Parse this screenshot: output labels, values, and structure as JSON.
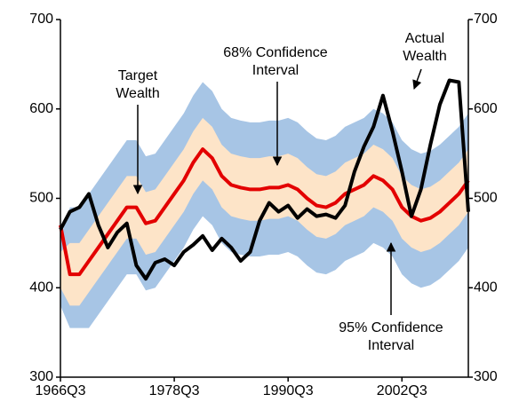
{
  "chart_data": {
    "type": "line",
    "x": [
      1966.5,
      1967.5,
      1968.5,
      1969.5,
      1970.5,
      1971.5,
      1972.5,
      1973.5,
      1974.5,
      1975.5,
      1976.5,
      1977.5,
      1978.5,
      1979.5,
      1980.5,
      1981.5,
      1982.5,
      1983.5,
      1984.5,
      1985.5,
      1986.5,
      1987.5,
      1988.5,
      1989.5,
      1990.5,
      1991.5,
      1992.5,
      1993.5,
      1994.5,
      1995.5,
      1996.5,
      1997.5,
      1998.5,
      1999.5,
      2000.5,
      2001.5,
      2002.5,
      2003.5,
      2004.5,
      2005.5,
      2006.5,
      2007.5,
      2008.5,
      2009.5
    ],
    "xlim": [
      1966.5,
      2009.5
    ],
    "xticks": [
      {
        "value": 1966.5,
        "label": "1966Q3"
      },
      {
        "value": 1978.5,
        "label": "1978Q3"
      },
      {
        "value": 1990.5,
        "label": "1990Q3"
      },
      {
        "value": 2002.5,
        "label": "2002Q3"
      }
    ],
    "ylim": [
      300,
      700
    ],
    "yticks": [
      300,
      400,
      500,
      600,
      700
    ],
    "y2lim": [
      300,
      700
    ],
    "y2ticks": [
      300,
      400,
      500,
      600,
      700
    ],
    "bands": [
      {
        "color": "#a7c5e5",
        "lower": [
          380,
          355,
          355,
          355,
          370,
          385,
          400,
          415,
          415,
          397,
          400,
          415,
          430,
          445,
          465,
          480,
          470,
          450,
          440,
          437,
          435,
          435,
          437,
          437,
          440,
          435,
          425,
          417,
          415,
          420,
          430,
          435,
          440,
          450,
          445,
          435,
          415,
          405,
          400,
          403,
          410,
          420,
          430,
          445
        ],
        "upper": [
          455,
          490,
          490,
          505,
          520,
          535,
          550,
          565,
          565,
          547,
          550,
          565,
          580,
          595,
          615,
          630,
          620,
          600,
          590,
          587,
          585,
          585,
          587,
          587,
          590,
          585,
          575,
          567,
          565,
          570,
          580,
          585,
          590,
          600,
          595,
          585,
          565,
          555,
          550,
          553,
          560,
          570,
          580,
          595
        ]
      },
      {
        "color": "#fde4c8",
        "lower": [
          400,
          380,
          380,
          395,
          410,
          425,
          440,
          455,
          455,
          437,
          440,
          455,
          470,
          485,
          505,
          520,
          510,
          490,
          480,
          477,
          475,
          475,
          477,
          477,
          480,
          475,
          465,
          457,
          455,
          460,
          470,
          475,
          480,
          490,
          485,
          475,
          455,
          445,
          440,
          443,
          450,
          460,
          470,
          485
        ],
        "upper": [
          440,
          450,
          450,
          465,
          480,
          495,
          510,
          525,
          525,
          507,
          510,
          525,
          540,
          555,
          575,
          590,
          580,
          560,
          550,
          547,
          545,
          545,
          547,
          547,
          550,
          545,
          535,
          527,
          525,
          530,
          540,
          545,
          550,
          560,
          555,
          545,
          525,
          515,
          510,
          513,
          520,
          530,
          540,
          555
        ]
      }
    ],
    "series": [
      {
        "color": "#e30000",
        "values": [
          470,
          415,
          415,
          430,
          445,
          460,
          475,
          490,
          490,
          472,
          475,
          490,
          505,
          520,
          540,
          555,
          545,
          525,
          515,
          512,
          510,
          510,
          512,
          512,
          515,
          510,
          500,
          492,
          490,
          495,
          505,
          510,
          515,
          525,
          520,
          510,
          490,
          480,
          475,
          478,
          485,
          495,
          505,
          520
        ]
      },
      {
        "color": "#000000",
        "values": [
          465,
          485,
          490,
          505,
          470,
          445,
          462,
          472,
          425,
          410,
          428,
          432,
          425,
          440,
          448,
          458,
          442,
          455,
          445,
          430,
          440,
          475,
          495,
          485,
          492,
          478,
          488,
          480,
          482,
          478,
          492,
          530,
          558,
          580,
          615,
          575,
          530,
          480,
          510,
          560,
          605,
          632,
          630,
          485
        ]
      }
    ],
    "annotations": [
      {
        "text": [
          "Target",
          "Wealth"
        ]
      },
      {
        "text": [
          "68% Confidence",
          "Interval"
        ]
      },
      {
        "text": [
          "Actual",
          "Wealth"
        ]
      },
      {
        "text": [
          "95% Confidence",
          "Interval"
        ]
      }
    ]
  }
}
